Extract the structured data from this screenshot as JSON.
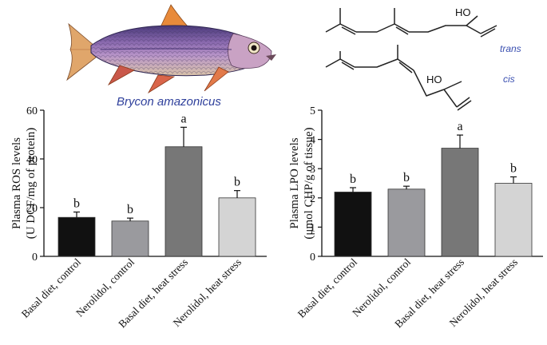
{
  "figure": {
    "species_label": "Brycon amazonicus",
    "isomer_trans": "trans",
    "isomer_cis": "cis",
    "hydroxyl_label": "HO",
    "fish_icon": "fish-illustration-icon"
  },
  "chart_data": [
    {
      "type": "bar",
      "title": "",
      "ylabel": "Plasma ROS levels",
      "ylabel_units": "(U DCF/mg of protein)",
      "xlabel": "",
      "ylim": [
        0,
        60
      ],
      "yticks": [
        0,
        20,
        40,
        60
      ],
      "categories": [
        "Basal diet, control",
        "Nerolidol, control",
        "Basal diet, heat stress",
        "Nerolidol, heat stress"
      ],
      "values": [
        16,
        14.5,
        45,
        24
      ],
      "errors": [
        2.2,
        1.2,
        8,
        3
      ],
      "letters": [
        "b",
        "b",
        "a",
        "b"
      ],
      "colors": [
        "#111111",
        "#9a9a9e",
        "#777777",
        "#d4d4d4"
      ]
    },
    {
      "type": "bar",
      "title": "",
      "ylabel": "Plasma LPO levels",
      "ylabel_units": "(μmol CHP/g of tissue)",
      "xlabel": "",
      "ylim": [
        0,
        5
      ],
      "yticks": [
        0,
        1,
        2,
        3,
        4,
        5
      ],
      "categories": [
        "Basal diet, control",
        "Nerolidol, control",
        "Basal diet, heat stress",
        "Nerolidol, heat stress"
      ],
      "values": [
        2.2,
        2.3,
        3.7,
        2.5
      ],
      "errors": [
        0.15,
        0.1,
        0.45,
        0.22
      ],
      "letters": [
        "b",
        "b",
        "a",
        "b"
      ],
      "colors": [
        "#111111",
        "#9a9a9e",
        "#777777",
        "#d4d4d4"
      ]
    }
  ]
}
